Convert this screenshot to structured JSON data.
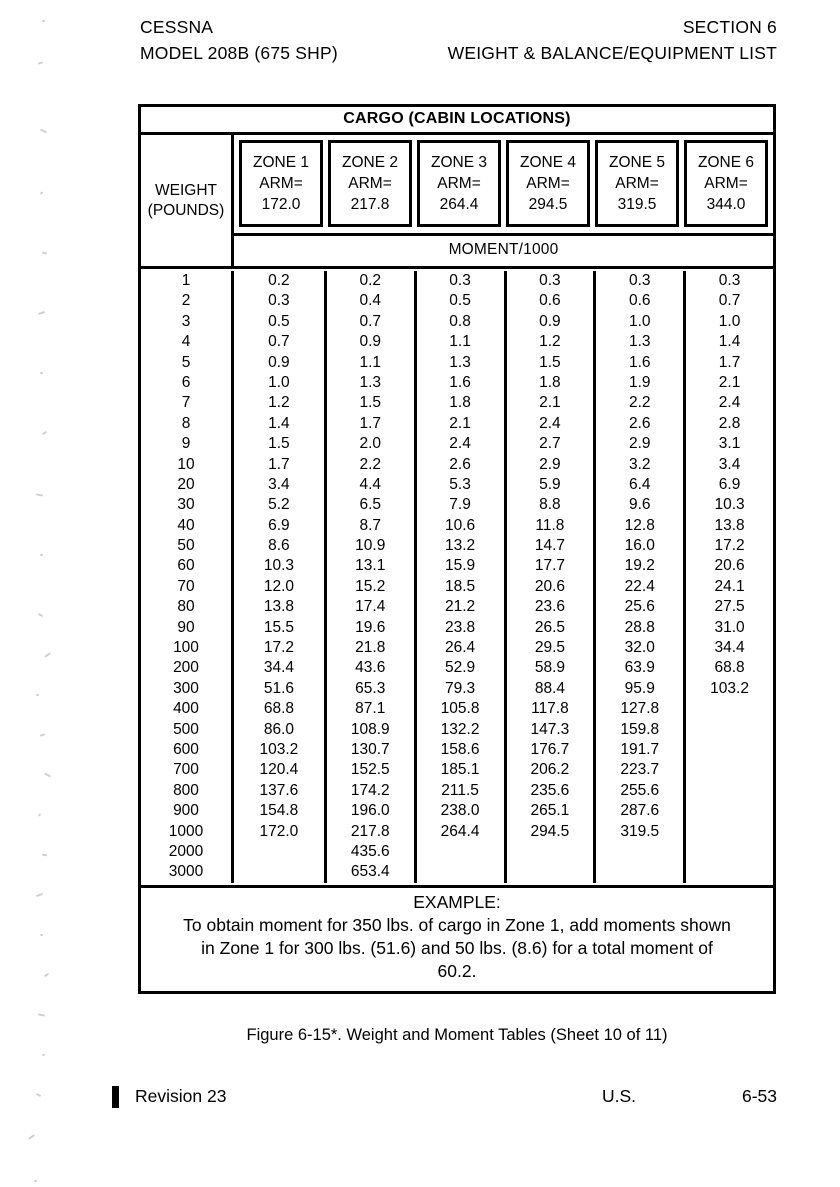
{
  "page_header": {
    "left_line1": "CESSNA",
    "left_line2": "MODEL 208B (675 SHP)",
    "right_line1": "SECTION 6",
    "right_line2": "WEIGHT & BALANCE/EQUIPMENT LIST"
  },
  "table": {
    "title": "CARGO (CABIN LOCATIONS)",
    "weight_header_line1": "WEIGHT",
    "weight_header_line2": "(POUNDS)",
    "moment_header": "MOMENT/1000",
    "zone_headers": [
      {
        "name": "ZONE 1",
        "arm_label": "ARM=",
        "arm": "172.0"
      },
      {
        "name": "ZONE 2",
        "arm_label": "ARM=",
        "arm": "217.8"
      },
      {
        "name": "ZONE 3",
        "arm_label": "ARM=",
        "arm": "264.4"
      },
      {
        "name": "ZONE 4",
        "arm_label": "ARM=",
        "arm": "294.5"
      },
      {
        "name": "ZONE 5",
        "arm_label": "ARM=",
        "arm": "319.5"
      },
      {
        "name": "ZONE 6",
        "arm_label": "ARM=",
        "arm": "344.0"
      }
    ],
    "rows": [
      {
        "weight": "1",
        "values": [
          "0.2",
          "0.2",
          "0.3",
          "0.3",
          "0.3",
          "0.3"
        ]
      },
      {
        "weight": "2",
        "values": [
          "0.3",
          "0.4",
          "0.5",
          "0.6",
          "0.6",
          "0.7"
        ]
      },
      {
        "weight": "3",
        "values": [
          "0.5",
          "0.7",
          "0.8",
          "0.9",
          "1.0",
          "1.0"
        ]
      },
      {
        "weight": "4",
        "values": [
          "0.7",
          "0.9",
          "1.1",
          "1.2",
          "1.3",
          "1.4"
        ]
      },
      {
        "weight": "5",
        "values": [
          "0.9",
          "1.1",
          "1.3",
          "1.5",
          "1.6",
          "1.7"
        ]
      },
      {
        "weight": "6",
        "values": [
          "1.0",
          "1.3",
          "1.6",
          "1.8",
          "1.9",
          "2.1"
        ]
      },
      {
        "weight": "7",
        "values": [
          "1.2",
          "1.5",
          "1.8",
          "2.1",
          "2.2",
          "2.4"
        ]
      },
      {
        "weight": "8",
        "values": [
          "1.4",
          "1.7",
          "2.1",
          "2.4",
          "2.6",
          "2.8"
        ]
      },
      {
        "weight": "9",
        "values": [
          "1.5",
          "2.0",
          "2.4",
          "2.7",
          "2.9",
          "3.1"
        ]
      },
      {
        "weight": "10",
        "values": [
          "1.7",
          "2.2",
          "2.6",
          "2.9",
          "3.2",
          "3.4"
        ]
      },
      {
        "weight": "20",
        "values": [
          "3.4",
          "4.4",
          "5.3",
          "5.9",
          "6.4",
          "6.9"
        ]
      },
      {
        "weight": "30",
        "values": [
          "5.2",
          "6.5",
          "7.9",
          "8.8",
          "9.6",
          "10.3"
        ]
      },
      {
        "weight": "40",
        "values": [
          "6.9",
          "8.7",
          "10.6",
          "11.8",
          "12.8",
          "13.8"
        ]
      },
      {
        "weight": "50",
        "values": [
          "8.6",
          "10.9",
          "13.2",
          "14.7",
          "16.0",
          "17.2"
        ]
      },
      {
        "weight": "60",
        "values": [
          "10.3",
          "13.1",
          "15.9",
          "17.7",
          "19.2",
          "20.6"
        ]
      },
      {
        "weight": "70",
        "values": [
          "12.0",
          "15.2",
          "18.5",
          "20.6",
          "22.4",
          "24.1"
        ]
      },
      {
        "weight": "80",
        "values": [
          "13.8",
          "17.4",
          "21.2",
          "23.6",
          "25.6",
          "27.5"
        ]
      },
      {
        "weight": "90",
        "values": [
          "15.5",
          "19.6",
          "23.8",
          "26.5",
          "28.8",
          "31.0"
        ]
      },
      {
        "weight": "100",
        "values": [
          "17.2",
          "21.8",
          "26.4",
          "29.5",
          "32.0",
          "34.4"
        ]
      },
      {
        "weight": "200",
        "values": [
          "34.4",
          "43.6",
          "52.9",
          "58.9",
          "63.9",
          "68.8"
        ]
      },
      {
        "weight": "300",
        "values": [
          "51.6",
          "65.3",
          "79.3",
          "88.4",
          "95.9",
          "103.2"
        ]
      },
      {
        "weight": "400",
        "values": [
          "68.8",
          "87.1",
          "105.8",
          "117.8",
          "127.8",
          ""
        ]
      },
      {
        "weight": "500",
        "values": [
          "86.0",
          "108.9",
          "132.2",
          "147.3",
          "159.8",
          ""
        ]
      },
      {
        "weight": "600",
        "values": [
          "103.2",
          "130.7",
          "158.6",
          "176.7",
          "191.7",
          ""
        ]
      },
      {
        "weight": "700",
        "values": [
          "120.4",
          "152.5",
          "185.1",
          "206.2",
          "223.7",
          ""
        ]
      },
      {
        "weight": "800",
        "values": [
          "137.6",
          "174.2",
          "211.5",
          "235.6",
          "255.6",
          ""
        ]
      },
      {
        "weight": "900",
        "values": [
          "154.8",
          "196.0",
          "238.0",
          "265.1",
          "287.6",
          ""
        ]
      },
      {
        "weight": "1000",
        "values": [
          "172.0",
          "217.8",
          "264.4",
          "294.5",
          "319.5",
          ""
        ]
      },
      {
        "weight": "2000",
        "values": [
          "",
          "435.6",
          "",
          "",
          "",
          ""
        ]
      },
      {
        "weight": "3000",
        "values": [
          "",
          "653.4",
          "",
          "",
          "",
          ""
        ]
      }
    ],
    "example": {
      "title": "EXAMPLE:",
      "lines": [
        "To obtain moment for 350 lbs. of cargo in Zone 1, add moments shown",
        "in Zone 1 for 300 lbs. (51.6) and 50 lbs. (8.6) for a total moment of",
        "60.2."
      ]
    }
  },
  "caption": "Figure 6-15*. Weight and Moment Tables (Sheet 10 of 11)",
  "footer": {
    "revision": "Revision 23",
    "country": "U.S.",
    "page_number": "6-53"
  }
}
